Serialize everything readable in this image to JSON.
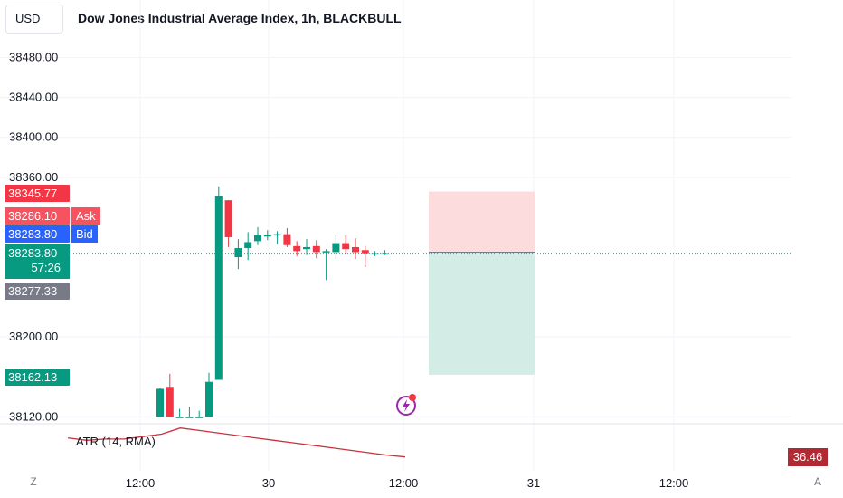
{
  "header": {
    "currency": "USD",
    "title": "Dow Jones Industrial Average Index, 1h, BLACKBULL"
  },
  "price_labels": {
    "high": "38345.77",
    "ask": "38286.10",
    "ask_tag": "Ask",
    "bid": "38283.80",
    "bid_tag": "Bid",
    "last": "38283.80",
    "countdown": "57:26",
    "low": "38277.33",
    "take_profit": "38162.13"
  },
  "atr": {
    "title": "ATR (14, RMA)",
    "value": "36.46",
    "color": "#c9323c"
  },
  "bottom_buttons": {
    "zoom": "Z",
    "auto": "A"
  },
  "colors": {
    "up": "#089981",
    "down": "#f23645",
    "grid": "#f0f3fa",
    "risk_zone": "#fcdcdd",
    "reward_zone": "#d3ece6"
  },
  "chart_data": {
    "type": "candlestick",
    "title": "Dow Jones Industrial Average Index, 1h, BLACKBULL",
    "y_axis": {
      "ticks": [
        "38480.00",
        "38440.00",
        "38400.00",
        "38360.00",
        "38200.00",
        "38120.00"
      ],
      "range": [
        38113,
        38525
      ]
    },
    "x_axis": {
      "ticks": [
        "12:00",
        "30",
        "12:00",
        "31",
        "12:00"
      ]
    },
    "candles": [
      {
        "open": 38120,
        "high": 38149,
        "low": 38120,
        "close": 38148
      },
      {
        "open": 38150,
        "high": 38163,
        "low": 38120,
        "close": 38120
      },
      {
        "open": 38120,
        "high": 38128,
        "low": 38120,
        "close": 38120
      },
      {
        "open": 38120,
        "high": 38130,
        "low": 38120,
        "close": 38120
      },
      {
        "open": 38120,
        "high": 38126,
        "low": 38120,
        "close": 38120
      },
      {
        "open": 38120,
        "high": 38164,
        "low": 38120,
        "close": 38155
      },
      {
        "open": 38157,
        "high": 38351,
        "low": 38157,
        "close": 38341
      },
      {
        "open": 38337,
        "high": 38337,
        "low": 38290,
        "close": 38300
      },
      {
        "open": 38280,
        "high": 38298,
        "low": 38268,
        "close": 38289
      },
      {
        "open": 38289,
        "high": 38305,
        "low": 38277,
        "close": 38295
      },
      {
        "open": 38296,
        "high": 38310,
        "low": 38292,
        "close": 38302
      },
      {
        "open": 38302,
        "high": 38307,
        "low": 38297,
        "close": 38302
      },
      {
        "open": 38302,
        "high": 38306,
        "low": 38293,
        "close": 38303
      },
      {
        "open": 38303,
        "high": 38309,
        "low": 38290,
        "close": 38292
      },
      {
        "open": 38291,
        "high": 38296,
        "low": 38281,
        "close": 38286
      },
      {
        "open": 38288,
        "high": 38298,
        "low": 38282,
        "close": 38290
      },
      {
        "open": 38291,
        "high": 38297,
        "low": 38279,
        "close": 38285
      },
      {
        "open": 38286,
        "high": 38288,
        "low": 38257,
        "close": 38286
      },
      {
        "open": 38285,
        "high": 38302,
        "low": 38278,
        "close": 38294
      },
      {
        "open": 38294,
        "high": 38302,
        "low": 38284,
        "close": 38288
      },
      {
        "open": 38290,
        "high": 38299,
        "low": 38278,
        "close": 38285
      },
      {
        "open": 38287,
        "high": 38291,
        "low": 38270,
        "close": 38284
      },
      {
        "open": 38284,
        "high": 38286,
        "low": 38281,
        "close": 38284
      },
      {
        "open": 38284,
        "high": 38287,
        "low": 38282,
        "close": 38284
      }
    ],
    "position": {
      "entry": 38285,
      "stop": 38345.77,
      "target": 38162.13
    },
    "atr_series": [
      52,
      50,
      51,
      51,
      53,
      55,
      60,
      58,
      56,
      54,
      52,
      50,
      48,
      46,
      44,
      42,
      40,
      38,
      36.46
    ]
  }
}
